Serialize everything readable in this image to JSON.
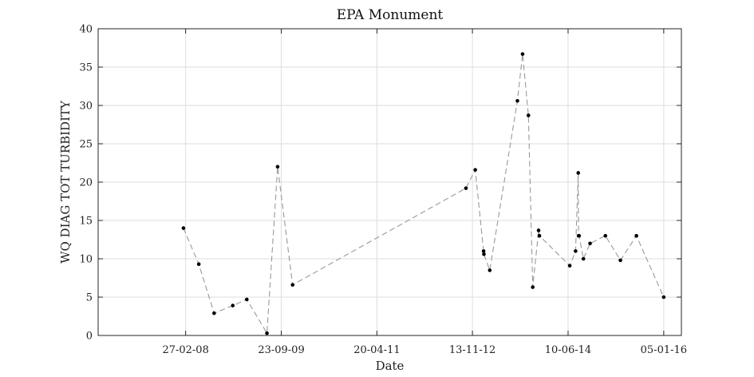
{
  "chart_data": {
    "type": "line",
    "title": "EPA Monument",
    "xlabel": "Date",
    "ylabel": "WQ DIAG TOT TURBIDITY",
    "x_scale": "date",
    "xlim": [
      "2006-09-20",
      "2016-04-20"
    ],
    "ylim": [
      0,
      40
    ],
    "grid": true,
    "legend": "none",
    "x_ticks": [
      {
        "date": "2008-02-27",
        "label": "27-02-08"
      },
      {
        "date": "2009-09-23",
        "label": "23-09-09"
      },
      {
        "date": "2011-04-20",
        "label": "20-04-11"
      },
      {
        "date": "2012-11-13",
        "label": "13-11-12"
      },
      {
        "date": "2014-06-10",
        "label": "10-06-14"
      },
      {
        "date": "2016-01-05",
        "label": "05-01-16"
      }
    ],
    "y_ticks": [
      0,
      5,
      10,
      15,
      20,
      25,
      30,
      35,
      40
    ],
    "line_color": "#999999",
    "marker_color": "#000000",
    "series": [
      {
        "x": [
          "2008-02-14",
          "2008-05-16",
          "2008-08-16",
          "2008-12-06",
          "2009-02-28",
          "2009-06-29",
          "2009-09-01",
          "2009-11-30",
          "2012-10-05",
          "2012-11-30",
          "2013-01-19",
          "2013-01-21",
          "2013-02-25",
          "2013-08-10",
          "2013-09-10",
          "2013-10-15",
          "2013-11-10",
          "2013-12-15",
          "2013-12-20",
          "2014-06-20",
          "2014-07-25",
          "2014-08-10",
          "2014-08-12",
          "2014-08-15",
          "2014-09-10",
          "2014-10-20",
          "2015-01-20",
          "2015-04-20",
          "2015-07-25",
          "2016-01-05"
        ],
        "y": [
          14.0,
          9.3,
          2.9,
          3.9,
          4.7,
          0.3,
          22.0,
          6.6,
          19.2,
          21.6,
          11.0,
          10.6,
          8.5,
          30.6,
          36.7,
          28.7,
          6.3,
          13.7,
          13.0,
          9.1,
          11.0,
          21.2,
          13.0,
          13.0,
          10.0,
          12.0,
          13.0,
          9.8,
          13.0,
          5.0
        ]
      }
    ]
  }
}
